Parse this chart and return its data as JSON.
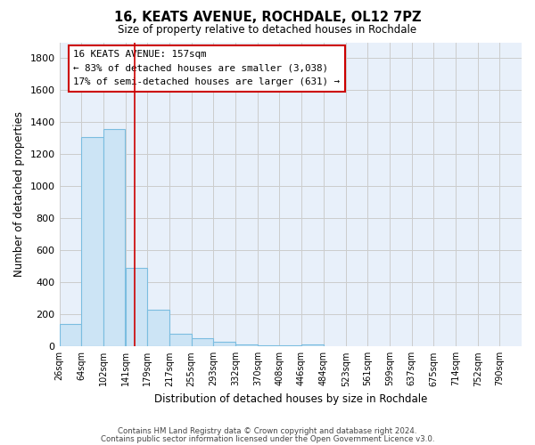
{
  "title": "16, KEATS AVENUE, ROCHDALE, OL12 7PZ",
  "subtitle": "Size of property relative to detached houses in Rochdale",
  "xlabel": "Distribution of detached houses by size in Rochdale",
  "ylabel": "Number of detached properties",
  "footer1": "Contains HM Land Registry data © Crown copyright and database right 2024.",
  "footer2": "Contains public sector information licensed under the Open Government Licence v3.0.",
  "annotation_line1": "16 KEATS AVENUE: 157sqm",
  "annotation_line2": "← 83% of detached houses are smaller (3,038)",
  "annotation_line3": "17% of semi-detached houses are larger (631) →",
  "property_size": 157,
  "bar_lefts": [
    26,
    64,
    102,
    141,
    179,
    217,
    255,
    293,
    332,
    370,
    408,
    446
  ],
  "bar_widths": [
    38,
    38,
    38,
    38,
    38,
    38,
    38,
    38,
    38,
    38,
    38,
    38
  ],
  "bar_heights": [
    140,
    1310,
    1360,
    490,
    230,
    80,
    50,
    30,
    15,
    10,
    5,
    15
  ],
  "x_tick_positions": [
    26,
    64,
    102,
    141,
    179,
    217,
    255,
    293,
    332,
    370,
    408,
    446,
    484,
    523,
    561,
    599,
    637,
    675,
    714,
    752,
    790
  ],
  "x_tick_labels": [
    "26sqm",
    "64sqm",
    "102sqm",
    "141sqm",
    "179sqm",
    "217sqm",
    "255sqm",
    "293sqm",
    "332sqm",
    "370sqm",
    "408sqm",
    "446sqm",
    "484sqm",
    "523sqm",
    "561sqm",
    "599sqm",
    "637sqm",
    "675sqm",
    "714sqm",
    "752sqm",
    "790sqm"
  ],
  "bar_color": "#cce4f5",
  "bar_edge_color": "#7bbde0",
  "grid_color": "#cccccc",
  "bg_color": "#e8f0fa",
  "red_line_color": "#cc0000",
  "annotation_box_edge_color": "#cc0000",
  "ylim": [
    0,
    1900
  ],
  "xlim": [
    26,
    828
  ],
  "yticks": [
    0,
    200,
    400,
    600,
    800,
    1000,
    1200,
    1400,
    1600,
    1800
  ]
}
